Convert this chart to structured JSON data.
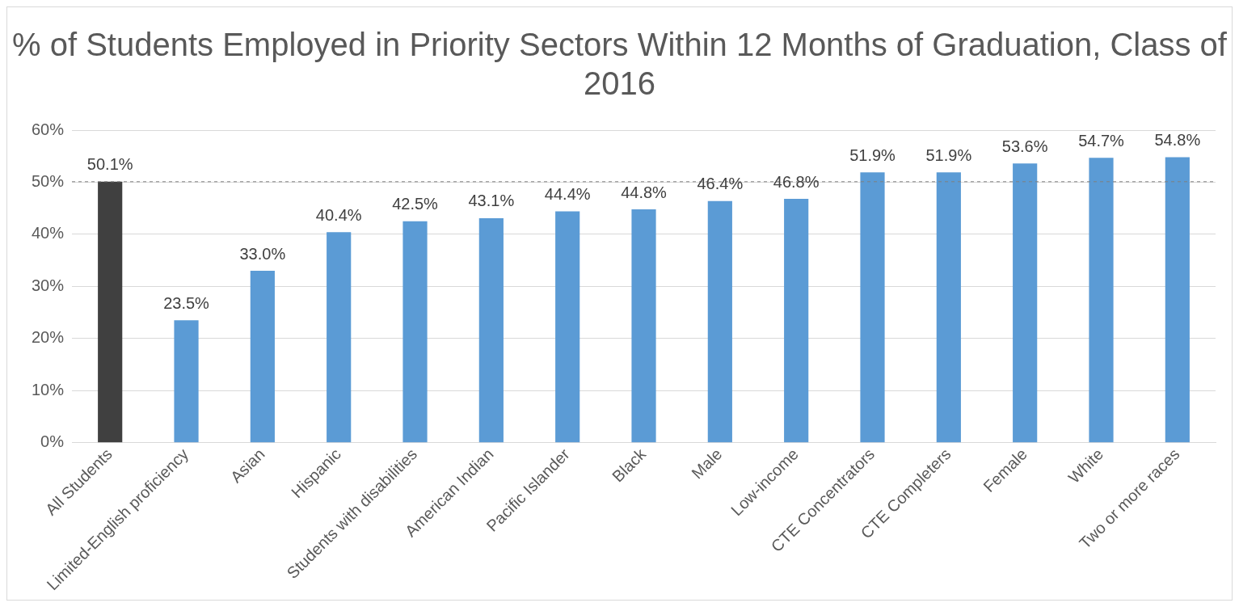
{
  "chart_data": {
    "type": "bar",
    "title": "% of Students Employed in Priority Sectors Within 12 Months of Graduation, Class of 2016",
    "categories": [
      "All Students",
      "Limited-English proficiency",
      "Asian",
      "Hispanic",
      "Students with disabilities",
      "American Indian",
      "Pacific Islander",
      "Black",
      "Male",
      "Low-income",
      "CTE Concentrators",
      "CTE Completers",
      "Female",
      "White",
      "Two or more races"
    ],
    "values": [
      50.1,
      23.5,
      33.0,
      40.4,
      42.5,
      43.1,
      44.4,
      44.8,
      46.4,
      46.8,
      51.9,
      51.9,
      53.6,
      54.7,
      54.8
    ],
    "value_labels": [
      "50.1%",
      "23.5%",
      "33.0%",
      "40.4%",
      "42.5%",
      "43.1%",
      "44.4%",
      "44.8%",
      "46.4%",
      "46.8%",
      "51.9%",
      "51.9%",
      "53.6%",
      "54.7%",
      "54.8%"
    ],
    "colors": [
      "#404040",
      "#5b9bd5",
      "#5b9bd5",
      "#5b9bd5",
      "#5b9bd5",
      "#5b9bd5",
      "#5b9bd5",
      "#5b9bd5",
      "#5b9bd5",
      "#5b9bd5",
      "#5b9bd5",
      "#5b9bd5",
      "#5b9bd5",
      "#5b9bd5",
      "#5b9bd5"
    ],
    "ylim": [
      0,
      60
    ],
    "yticks": [
      {
        "value": 0,
        "label": "0%"
      },
      {
        "value": 10,
        "label": "10%"
      },
      {
        "value": 20,
        "label": "20%"
      },
      {
        "value": 30,
        "label": "30%"
      },
      {
        "value": 40,
        "label": "40%"
      },
      {
        "value": 50,
        "label": "50%"
      },
      {
        "value": 60,
        "label": "60%"
      }
    ],
    "grid": "y",
    "legend": false,
    "ref_lines": [
      {
        "axis": "y",
        "value": 50.1,
        "color": "#7f7f7f",
        "line_style": "dashed"
      }
    ]
  }
}
